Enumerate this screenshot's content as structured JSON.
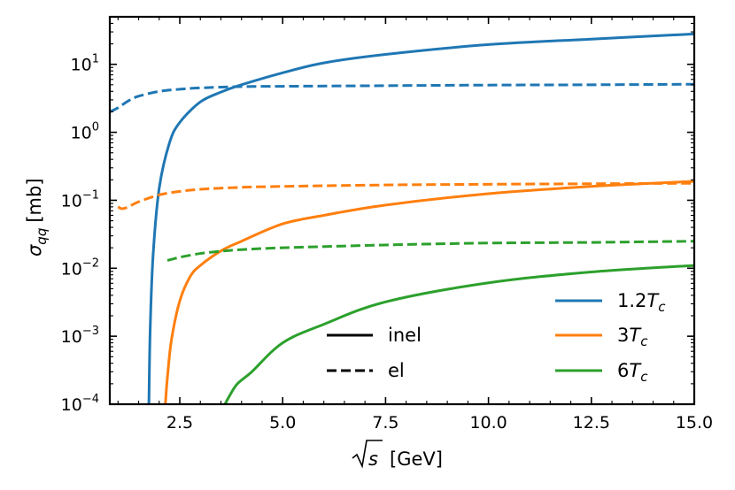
{
  "chart_data": {
    "type": "line",
    "xlabel_sqrt": "s",
    "xlabel_unit": "[GeV]",
    "ylabel_sym": "σ",
    "ylabel_sub": "qq",
    "ylabel_unit": "[mb]",
    "xlim": [
      0.8,
      15.0
    ],
    "ylim": [
      0.0001,
      50
    ],
    "yscale": "log",
    "xticks": [
      "2.5",
      "5.0",
      "7.5",
      "10.0",
      "12.5",
      "15.0"
    ],
    "yticks": [
      {
        "base": "10",
        "exp": "-4"
      },
      {
        "base": "10",
        "exp": "-3"
      },
      {
        "base": "10",
        "exp": "-2"
      },
      {
        "base": "10",
        "exp": "-1"
      },
      {
        "base": "10",
        "exp": "0"
      },
      {
        "base": "10",
        "exp": "1"
      }
    ],
    "colors": {
      "1.2Tc": "#1f77b4",
      "3Tc": "#ff7f0e",
      "6Tc": "#2ca02c"
    },
    "series": [
      {
        "name": "1.2Tc inel",
        "temperature": "1.2T_c",
        "style": "inel",
        "color": "#1f77b4",
        "x": [
          1.75,
          1.78,
          1.85,
          2.0,
          2.25,
          2.5,
          3.0,
          3.5,
          4.0,
          5.0,
          6.0,
          7.5,
          10.0,
          12.5,
          15.0
        ],
        "y": [
          0.0001,
          0.0012,
          0.015,
          0.15,
          0.7,
          1.4,
          2.8,
          3.9,
          5.0,
          7.5,
          10.5,
          14.0,
          19.5,
          23.5,
          28.0
        ]
      },
      {
        "name": "1.2Tc el",
        "temperature": "1.2T_c",
        "style": "el",
        "color": "#1f77b4",
        "x": [
          0.8,
          1.0,
          1.25,
          1.5,
          2.0,
          2.5,
          3.0,
          4.0,
          5.0,
          7.5,
          10.0,
          12.5,
          15.0
        ],
        "y": [
          2.0,
          2.3,
          2.9,
          3.4,
          4.0,
          4.3,
          4.5,
          4.7,
          4.75,
          4.85,
          4.95,
          5.0,
          5.1
        ]
      },
      {
        "name": "3Tc inel",
        "temperature": "3T_c",
        "style": "inel",
        "color": "#ff7f0e",
        "x": [
          2.15,
          2.2,
          2.3,
          2.5,
          2.75,
          3.0,
          3.5,
          4.0,
          5.0,
          6.0,
          7.5,
          10.0,
          12.5,
          15.0
        ],
        "y": [
          0.0001,
          0.00025,
          0.0009,
          0.0033,
          0.0075,
          0.011,
          0.018,
          0.025,
          0.045,
          0.06,
          0.085,
          0.125,
          0.16,
          0.19
        ]
      },
      {
        "name": "3Tc el",
        "temperature": "3T_c",
        "style": "el",
        "color": "#ff7f0e",
        "x": [
          1.0,
          1.1,
          1.25,
          1.5,
          2.0,
          2.5,
          3.0,
          4.0,
          5.0,
          7.5,
          10.0,
          12.5,
          15.0
        ],
        "y": [
          0.08,
          0.075,
          0.08,
          0.095,
          0.12,
          0.135,
          0.145,
          0.155,
          0.16,
          0.168,
          0.172,
          0.175,
          0.178
        ]
      },
      {
        "name": "6Tc inel",
        "temperature": "6T_c",
        "style": "inel",
        "color": "#2ca02c",
        "x": [
          3.6,
          3.7,
          3.9,
          4.25,
          5.0,
          6.0,
          7.5,
          10.0,
          12.5,
          15.0
        ],
        "y": [
          0.0001,
          0.00013,
          0.0002,
          0.0003,
          0.0008,
          0.0015,
          0.0032,
          0.0061,
          0.0088,
          0.011
        ]
      },
      {
        "name": "6Tc el",
        "temperature": "6T_c",
        "style": "el",
        "color": "#2ca02c",
        "x": [
          2.2,
          2.5,
          3.0,
          3.5,
          4.0,
          5.0,
          7.5,
          10.0,
          12.5,
          15.0
        ],
        "y": [
          0.013,
          0.0145,
          0.0165,
          0.0178,
          0.0188,
          0.02,
          0.022,
          0.0235,
          0.024,
          0.025
        ]
      }
    ],
    "legend_styles": [
      {
        "label": "inel",
        "dash": "solid"
      },
      {
        "label": "el",
        "dash": "dashed"
      }
    ],
    "legend_temps": [
      {
        "coef": "1.2",
        "sym": "T",
        "sub": "c",
        "color": "#1f77b4"
      },
      {
        "coef": "3",
        "sym": "T",
        "sub": "c",
        "color": "#ff7f0e"
      },
      {
        "coef": "6",
        "sym": "T",
        "sub": "c",
        "color": "#2ca02c"
      }
    ]
  }
}
